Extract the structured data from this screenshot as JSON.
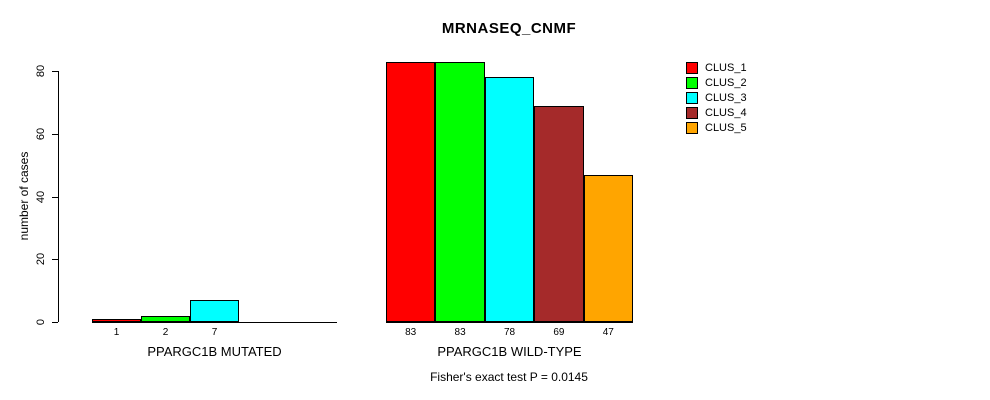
{
  "title": "MRNASEQ_CNMF",
  "footer": "Fisher's exact test P = 0.0145",
  "chart_data": {
    "type": "bar",
    "title": "MRNASEQ_CNMF",
    "xlabel": "",
    "ylabel": "number of cases",
    "ylim": [
      0,
      80
    ],
    "yticks": [
      0,
      20,
      40,
      60,
      80
    ],
    "grid": false,
    "legend_position": "top-right",
    "series": [
      {
        "name": "CLUS_1",
        "color": "#ff0000"
      },
      {
        "name": "CLUS_2",
        "color": "#00ff00"
      },
      {
        "name": "CLUS_3",
        "color": "#00ffff"
      },
      {
        "name": "CLUS_4",
        "color": "#a52a2a"
      },
      {
        "name": "CLUS_5",
        "color": "#ffa500"
      }
    ],
    "groups": [
      {
        "label": "PPARGC1B MUTATED",
        "values": [
          1,
          2,
          7,
          0,
          0
        ],
        "bar_labels": [
          "1",
          "2",
          "7",
          "",
          ""
        ]
      },
      {
        "label": "PPARGC1B WILD-TYPE",
        "values": [
          83,
          83,
          78,
          69,
          47
        ],
        "bar_labels": [
          "83",
          "83",
          "78",
          "69",
          "47"
        ]
      }
    ],
    "annotation": "Fisher's exact test P = 0.0145"
  }
}
